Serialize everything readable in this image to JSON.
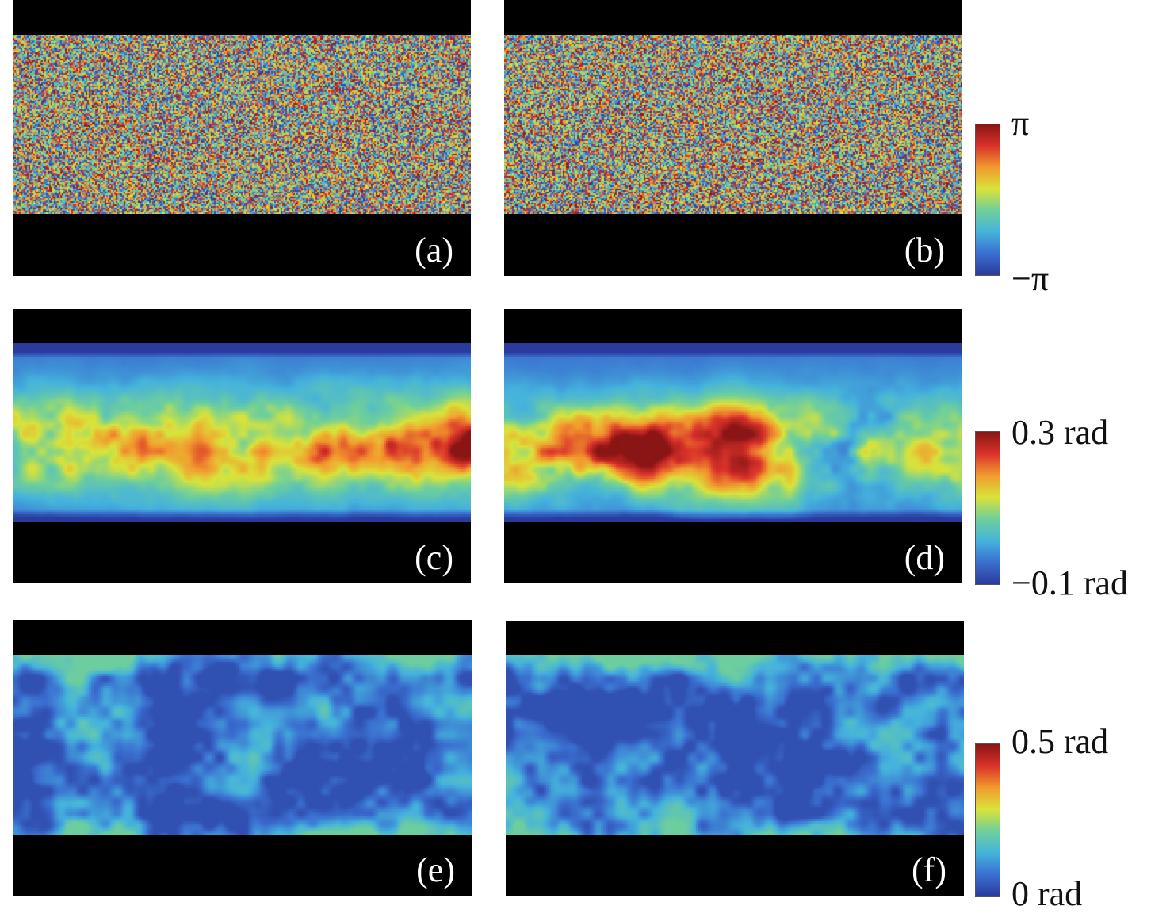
{
  "panels": [
    {
      "id": "a",
      "label": "(a)",
      "kind": "wrapped-phase"
    },
    {
      "id": "b",
      "label": "(b)",
      "kind": "wrapped-phase"
    },
    {
      "id": "c",
      "label": "(c)",
      "kind": "phase-map"
    },
    {
      "id": "d",
      "label": "(d)",
      "kind": "phase-map"
    },
    {
      "id": "e",
      "label": "(e)",
      "kind": "residual-map"
    },
    {
      "id": "f",
      "label": "(f)",
      "kind": "residual-map"
    }
  ],
  "colorbars": [
    {
      "id": "phase",
      "top": "π",
      "bottom": "−π"
    },
    {
      "id": "deformation",
      "top": "0.3 rad",
      "bottom": "−0.1 rad"
    },
    {
      "id": "error",
      "top": "0.5 rad",
      "bottom": "0 rad"
    }
  ],
  "colormap": {
    "name": "jet",
    "stops": [
      "#2a3b9c",
      "#3a6fd0",
      "#45b3dc",
      "#6fcf9a",
      "#d9e33a",
      "#f29a2e",
      "#d9322a",
      "#8a1515"
    ]
  }
}
